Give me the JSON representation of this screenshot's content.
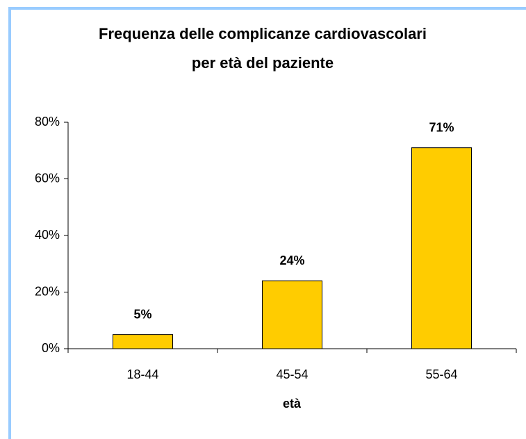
{
  "chart_data": {
    "type": "bar",
    "title": [
      "Frequenza delle complicanze cardiovascolari",
      "per età del paziente"
    ],
    "x_label": "età",
    "categories": [
      "18-44",
      "45-54",
      "55-64"
    ],
    "values": [
      5,
      24,
      71
    ],
    "value_labels": [
      "5%",
      "24%",
      "71%"
    ],
    "color": "#ffcc00",
    "ylim": [
      0,
      80
    ],
    "yticks": [
      {
        "value": 0,
        "label": "0%"
      },
      {
        "value": 20,
        "label": "20%"
      },
      {
        "value": 40,
        "label": "40%"
      },
      {
        "value": 60,
        "label": "60%"
      },
      {
        "value": 80,
        "label": "80%"
      }
    ],
    "grid": false
  }
}
